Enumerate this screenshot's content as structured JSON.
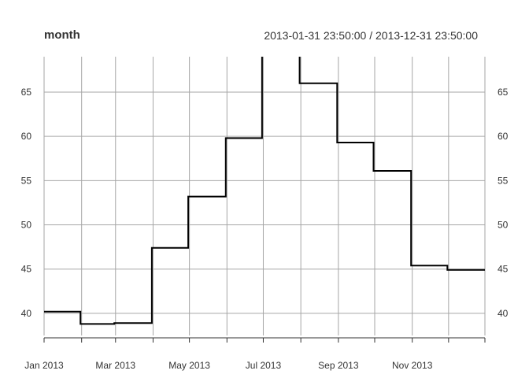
{
  "chart_data": {
    "type": "line",
    "step": true,
    "title": "month",
    "subtitle": "2013-01-31 23:50:00 / 2013-12-31 23:50:00",
    "x_labels": [
      "Jan 2013",
      "Mar 2013",
      "May 2013",
      "Jul 2013",
      "Sep 2013",
      "Nov 2013"
    ],
    "x": [
      "2013-01-31",
      "2013-02-28",
      "2013-03-31",
      "2013-04-30",
      "2013-05-31",
      "2013-06-30",
      "2013-07-31",
      "2013-08-31",
      "2013-09-30",
      "2013-10-31",
      "2013-11-30",
      "2013-12-31"
    ],
    "values": [
      40.2,
      38.8,
      38.9,
      47.4,
      53.2,
      59.8,
      69.2,
      66.0,
      59.3,
      56.1,
      45.4,
      44.9
    ],
    "ylim": [
      37.5,
      69.0
    ],
    "yticks": [
      40,
      45,
      50,
      55,
      60,
      65
    ],
    "grid": true,
    "line_color": "#000000",
    "grid_color": "#a6a6a6"
  }
}
